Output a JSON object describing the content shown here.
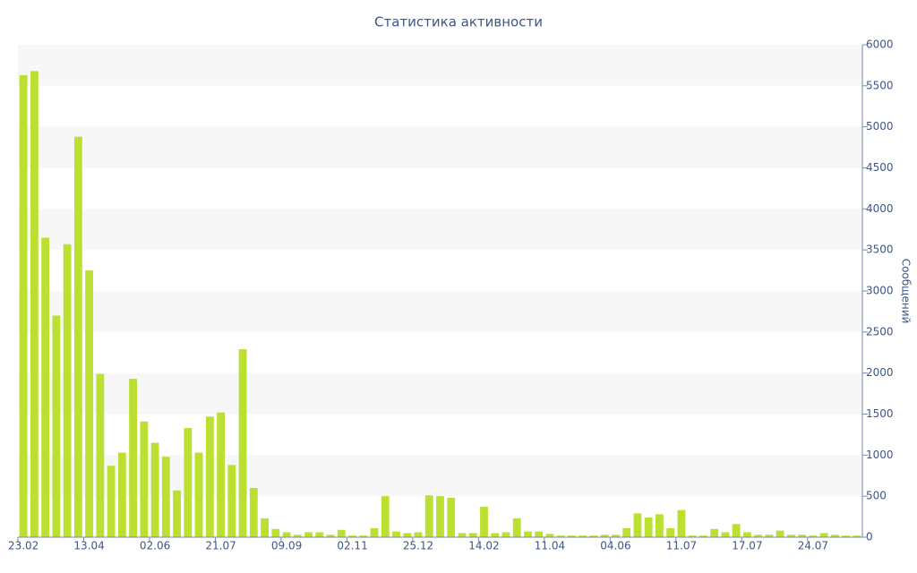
{
  "chart_data": {
    "type": "bar",
    "title": "Статистика активности",
    "y_axis_label": "Сообщений",
    "categories": [
      "23.02",
      null,
      null,
      null,
      null,
      null,
      "13.04",
      null,
      null,
      null,
      null,
      null,
      "02.06",
      null,
      null,
      null,
      null,
      null,
      "21.07",
      null,
      null,
      null,
      null,
      null,
      "09.09",
      null,
      null,
      null,
      null,
      null,
      "02.11",
      null,
      null,
      null,
      null,
      null,
      "25.12",
      null,
      null,
      null,
      null,
      null,
      "14.02",
      null,
      null,
      null,
      null,
      null,
      "11.04",
      null,
      null,
      null,
      null,
      null,
      "04.06",
      null,
      null,
      null,
      null,
      null,
      "11.07",
      null,
      null,
      null,
      null,
      null,
      "17.07",
      null,
      null,
      null,
      null,
      null,
      "24.07",
      null,
      null,
      null,
      null
    ],
    "values": [
      5630,
      5680,
      3650,
      2700,
      3570,
      4880,
      3250,
      1990,
      870,
      1030,
      1930,
      1410,
      1150,
      980,
      570,
      1330,
      1030,
      1470,
      1520,
      880,
      2290,
      600,
      230,
      100,
      60,
      30,
      60,
      60,
      30,
      90,
      20,
      20,
      110,
      500,
      70,
      50,
      60,
      510,
      500,
      480,
      50,
      50,
      370,
      50,
      60,
      230,
      70,
      70,
      40,
      20,
      20,
      20,
      20,
      30,
      30,
      110,
      290,
      240,
      280,
      110,
      330,
      20,
      20,
      100,
      60,
      160,
      60,
      30,
      30,
      80,
      30,
      30,
      20,
      50,
      30,
      20,
      20
    ],
    "color": "#bbe031",
    "ylim": [
      0,
      6000
    ],
    "yticks": [
      0,
      500,
      1000,
      1500,
      2000,
      2500,
      3000,
      3500,
      4000,
      4500,
      5000,
      5500,
      6000
    ],
    "y_axis_side": "right",
    "alternating_bands": true
  }
}
